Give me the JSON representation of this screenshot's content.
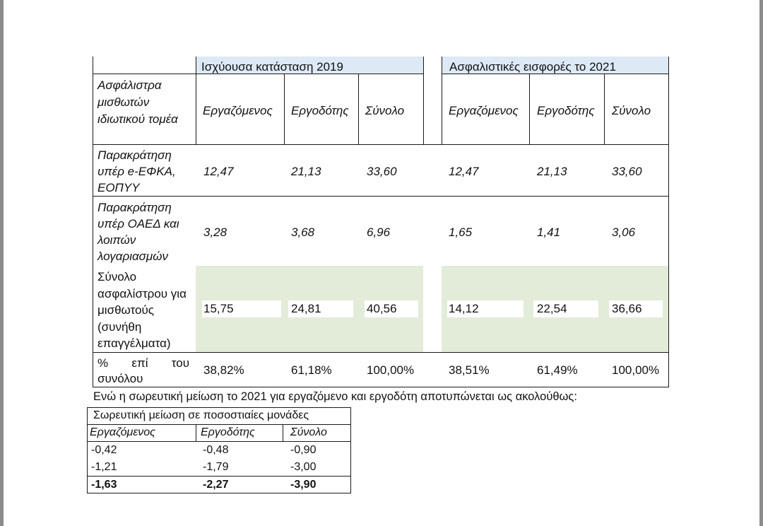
{
  "headers": {
    "current": "Ισχύουσα κατάσταση 2019",
    "future": "Ασφαλιστικές εισφορές το 2021"
  },
  "columns": {
    "label_header": "Ασφάλιστρα μισθωτών ιδιωτικού τομέα",
    "employee": "Εργαζόμενος",
    "employer": "Εργοδότης",
    "total": "Σύνολο"
  },
  "rows": [
    {
      "label": "Παρακράτηση υπέρ e-ΕΦΚΑ, ΕΟΠΥΥ",
      "current": [
        "12,47",
        "21,13",
        "33,60"
      ],
      "future": [
        "12,47",
        "21,13",
        "33,60"
      ]
    },
    {
      "label": "Παρακράτηση υπέρ ΟΑΕΔ και λοιπών λογαριασμών",
      "current": [
        "3,28",
        "3,68",
        "6,96"
      ],
      "future": [
        "1,65",
        "1,41",
        "3,06"
      ]
    },
    {
      "label": "Σύνολο ασφαλίστρου για μισθωτούς (συνήθη επαγγέλματα)",
      "current": [
        "15,75",
        "24,81",
        "40,56"
      ],
      "future": [
        "14,12",
        "22,54",
        "36,66"
      ]
    },
    {
      "label": "% επί του συνόλου",
      "current": [
        "38,82%",
        "61,18%",
        "100,00%"
      ],
      "future": [
        "38,51%",
        "61,49%",
        "100,00%"
      ]
    }
  ],
  "sentence": "Ενώ η σωρευτική μείωση το 2021 για εργαζόμενο και εργοδότη αποτυπώνεται ως ακολούθως:",
  "reduction": {
    "title": "Σωρευτική μείωση σε ποσοστιαίες μονάδες",
    "headers": [
      "Εργαζόμενος",
      "Εργοδότης",
      "Σύνολο"
    ],
    "rows": [
      [
        "-0,42",
        "-0,48",
        "-0,90"
      ],
      [
        "-1,21",
        "-1,79",
        "-3,00"
      ],
      [
        "-1,63",
        "-2,27",
        "-3,90"
      ]
    ]
  },
  "colors": {
    "header_blue": "#dde9f4",
    "total_green": "#e3ecd9"
  }
}
